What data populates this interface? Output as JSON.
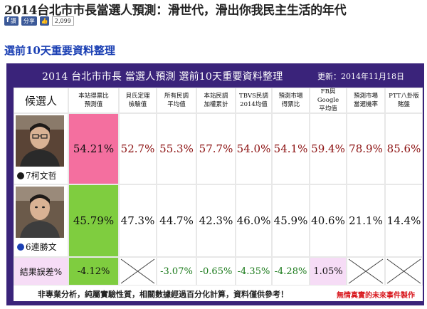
{
  "page": {
    "title": "2014台北市市長當選人預測：滑世代，滑出你我民主生活的年代",
    "share": {
      "fb_label": "讚",
      "share_label": "分享",
      "count": "2,099"
    },
    "section_heading": "選前10天重要資料整理"
  },
  "table": {
    "title": "2014 台北市市長 當選人預測 選前10天重要資料整理",
    "update_date": "更新：2014年11月18日",
    "candidate_header": "候選人",
    "column_headers": [
      {
        "line1": "本站得票比",
        "line2": "預測值"
      },
      {
        "line1": "貝氏定理",
        "line2": "檢驗值"
      },
      {
        "line1": "所有民調",
        "line2": "平均值"
      },
      {
        "line1": "本站民調",
        "line2": "加權累計"
      },
      {
        "line1": "TBVS民調",
        "line2": "2014均值"
      },
      {
        "line1": "預測市場",
        "line2": "得票比"
      },
      {
        "line1": "FB與Google",
        "line2": "平均值"
      },
      {
        "line1": "預測市場",
        "line2": "當選機率"
      },
      {
        "line1": "PTT八卦版",
        "line2": "賭盤"
      }
    ],
    "rows": [
      {
        "name": "7柯文哲",
        "party_color": "#1a1a1a",
        "values": [
          "54.21%",
          "52.7%",
          "55.3%",
          "57.7%",
          "54.0%",
          "54.1%",
          "59.4%",
          "78.9%",
          "85.6%"
        ],
        "highlight_color": "#f46f9f"
      },
      {
        "name": "6連勝文",
        "party_color": "#1a3fb3",
        "values": [
          "45.79%",
          "47.3%",
          "44.7%",
          "42.3%",
          "46.0%",
          "45.9%",
          "40.6%",
          "21.1%",
          "14.4%"
        ],
        "highlight_color": "#7fcd3f"
      }
    ],
    "error_row": {
      "label": "結果誤差%",
      "values": [
        "-4.12%",
        "",
        "-3.07%",
        "-0.65%",
        "-4.35%",
        "-4.28%",
        "1.05%",
        "",
        ""
      ]
    },
    "footer_note": "非專業分析，純屬實驗性質，相關數據經過百分化計算，資料僅供參考！",
    "footer_credit": "無情真實的未來事件製作"
  }
}
